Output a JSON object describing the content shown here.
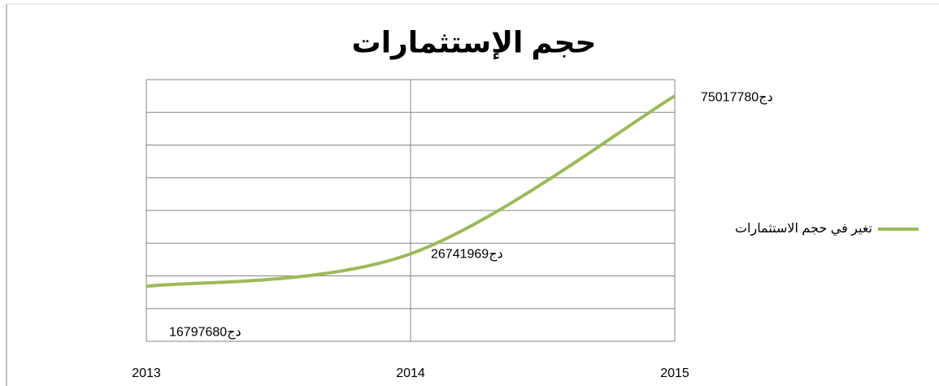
{
  "chart_data": {
    "type": "line",
    "title": "حجم الإستثمارات",
    "categories": [
      "2013",
      "2014",
      "2015"
    ],
    "series": [
      {
        "name": "تغير في حجم الاستثمارات",
        "color": "#9bbb59",
        "values": [
          16797680,
          26741969,
          75017780
        ],
        "value_labels": [
          "دج16797680",
          "دج26741969",
          "دج75017780"
        ]
      }
    ],
    "ylim": [
      0,
      80000000
    ],
    "yticks": [
      0,
      10000000,
      20000000,
      30000000,
      40000000,
      50000000,
      60000000,
      70000000,
      80000000
    ],
    "grid": true,
    "smooth": true,
    "legend": "right"
  }
}
